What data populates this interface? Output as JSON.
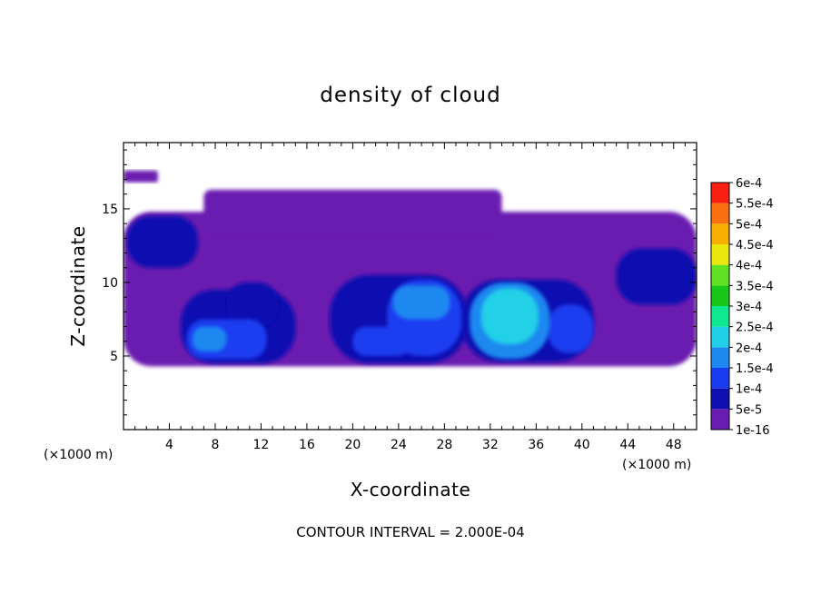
{
  "chart_data": {
    "type": "heatmap",
    "title": "density of cloud",
    "xlabel": "X-coordinate",
    "ylabel": "Z-coordinate",
    "x_unit_left": "(×1000 m)",
    "x_unit_right": "(×1000 m)",
    "xlim": [
      0,
      50
    ],
    "ylim": [
      0,
      19.5
    ],
    "x_ticks": [
      4,
      8,
      12,
      16,
      20,
      24,
      28,
      32,
      36,
      40,
      44,
      48
    ],
    "x_tick_labels": [
      "4",
      "8",
      "12",
      "16",
      "20",
      "24",
      "28",
      "32",
      "36",
      "40",
      "44",
      "48"
    ],
    "y_ticks": [
      5,
      10,
      15
    ],
    "y_tick_labels": [
      "5",
      "10",
      "15"
    ],
    "colorbar": {
      "levels": [
        {
          "label": "1e-16",
          "color": "#6a1bb0"
        },
        {
          "label": "5e-5",
          "color": "#1010b0"
        },
        {
          "label": "1e-4",
          "color": "#1a3cf0"
        },
        {
          "label": "1.5e-4",
          "color": "#1e88f0"
        },
        {
          "label": "2e-4",
          "color": "#20d0e8"
        },
        {
          "label": "2.5e-4",
          "color": "#10e890"
        },
        {
          "label": "3e-4",
          "color": "#18c818"
        },
        {
          "label": "3.5e-4",
          "color": "#60e020"
        },
        {
          "label": "4e-4",
          "color": "#e8e810"
        },
        {
          "label": "4.5e-4",
          "color": "#f8b000"
        },
        {
          "label": "5e-4",
          "color": "#f87010"
        },
        {
          "label": "5.5e-4",
          "color": "#f82010"
        },
        {
          "label": "6e-4",
          "color": "#f88080"
        }
      ]
    },
    "regions": [
      {
        "level": 0,
        "x0": 0,
        "x1": 50,
        "z0": 4.3,
        "z1": 14.8
      },
      {
        "level": 0,
        "x0": 0,
        "x1": 3,
        "z0": 16.8,
        "z1": 17.6
      },
      {
        "level": 0,
        "x0": 7,
        "x1": 33,
        "z0": 13.5,
        "z1": 16.3
      },
      {
        "level": 1,
        "x0": 0.3,
        "x1": 6.5,
        "z0": 11,
        "z1": 14.5
      },
      {
        "level": 1,
        "x0": 5,
        "x1": 15,
        "z0": 4.5,
        "z1": 9.5
      },
      {
        "level": 1,
        "x0": 18,
        "x1": 30,
        "z0": 4.5,
        "z1": 10.5
      },
      {
        "level": 1,
        "x0": 29.5,
        "x1": 41,
        "z0": 4.6,
        "z1": 10.2
      },
      {
        "level": 1,
        "x0": 43,
        "x1": 50,
        "z0": 8.5,
        "z1": 12.3
      },
      {
        "level": 1,
        "x0": 9,
        "x1": 13.5,
        "z0": 7,
        "z1": 10
      },
      {
        "level": 2,
        "x0": 5.5,
        "x1": 12.5,
        "z0": 4.8,
        "z1": 7.5
      },
      {
        "level": 2,
        "x0": 23,
        "x1": 29.5,
        "z0": 5,
        "z1": 10.2
      },
      {
        "level": 2,
        "x0": 20,
        "x1": 25,
        "z0": 5,
        "z1": 7
      },
      {
        "level": 2,
        "x0": 37,
        "x1": 41,
        "z0": 5.2,
        "z1": 8.5
      },
      {
        "level": 3,
        "x0": 23.5,
        "x1": 28.5,
        "z0": 7.5,
        "z1": 9.8
      },
      {
        "level": 3,
        "x0": 6,
        "x1": 9,
        "z0": 5.3,
        "z1": 7
      },
      {
        "level": 3,
        "x0": 30.2,
        "x1": 37.2,
        "z0": 4.8,
        "z1": 10
      },
      {
        "level": 4,
        "x0": 31.2,
        "x1": 36.2,
        "z0": 5.8,
        "z1": 9.6
      }
    ],
    "legend_position": "right",
    "grid": false
  },
  "footer": {
    "contour_interval": "CONTOUR INTERVAL = 2.000E-04"
  }
}
